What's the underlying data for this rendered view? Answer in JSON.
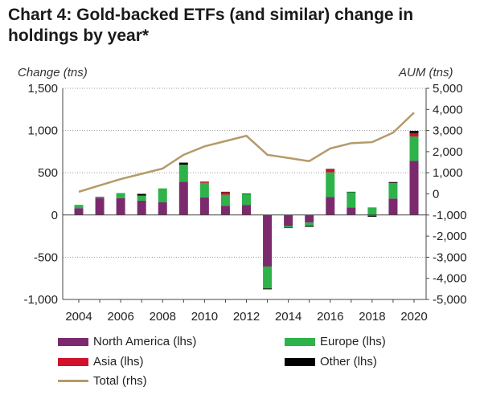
{
  "title": "Chart 4: Gold-backed ETFs (and similar) change in holdings by year*",
  "chart_data": {
    "type": "bar",
    "stacked": true,
    "ylabel_left": "Change (tns)",
    "ylabel_right": "AUM (tns)",
    "ylim_left": [
      -1000,
      1500
    ],
    "ylim_right": [
      -5000,
      5000
    ],
    "yticks_left": [
      "1,500",
      "1,000",
      "500",
      "0",
      "-500",
      "-1,000"
    ],
    "yticks_right": [
      "5,000",
      "4,000",
      "3,000",
      "2,000",
      "1,000",
      "0",
      "-1,000",
      "-2,000",
      "-3,000",
      "-4,000",
      "-5,000"
    ],
    "x": [
      2004,
      2005,
      2006,
      2007,
      2008,
      2009,
      2010,
      2011,
      2012,
      2013,
      2014,
      2015,
      2016,
      2017,
      2018,
      2019,
      2020
    ],
    "xtick_labels": [
      "2004",
      "2006",
      "2008",
      "2010",
      "2012",
      "2014",
      "2016",
      "2018",
      "2020"
    ],
    "grid": true,
    "legend_position": "bottom",
    "series": [
      {
        "name": "North America (lhs)",
        "axis": "left",
        "color": "#7b2a6e",
        "values": [
          80,
          200,
          200,
          170,
          150,
          395,
          210,
          110,
          120,
          -610,
          -130,
          -90,
          215,
          90,
          -10,
          195,
          640
        ]
      },
      {
        "name": "Europe (lhs)",
        "axis": "left",
        "color": "#2db34a",
        "values": [
          40,
          10,
          60,
          60,
          165,
          200,
          170,
          130,
          130,
          -260,
          -20,
          -40,
          290,
          180,
          90,
          185,
          290
        ]
      },
      {
        "name": "Asia (lhs)",
        "axis": "left",
        "color": "#d0122c",
        "values": [
          0,
          0,
          0,
          0,
          0,
          0,
          10,
          30,
          0,
          0,
          0,
          0,
          35,
          0,
          0,
          0,
          40
        ]
      },
      {
        "name": "Other (lhs)",
        "axis": "left",
        "color": "#000000",
        "values": [
          0,
          5,
          0,
          20,
          0,
          25,
          5,
          5,
          5,
          -10,
          -5,
          -10,
          5,
          5,
          -10,
          10,
          25
        ]
      },
      {
        "name": "Total (rhs)",
        "axis": "right",
        "type": "line",
        "color": "#b59a6a",
        "values": [
          100,
          400,
          700,
          950,
          1200,
          1850,
          2250,
          2500,
          2750,
          1850,
          1700,
          1550,
          2150,
          2400,
          2450,
          2900,
          3850
        ]
      }
    ]
  }
}
